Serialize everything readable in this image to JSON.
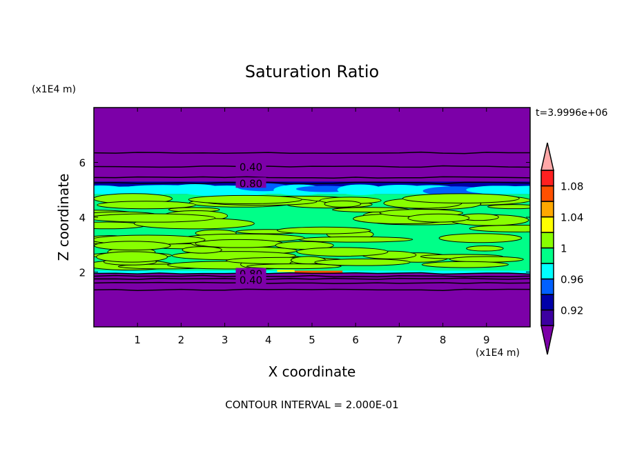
{
  "chart_data": {
    "type": "heatmap",
    "title": "Saturation Ratio",
    "xlabel": "X coordinate",
    "ylabel": "Z coordinate",
    "x_unit": "(x1E4 m)",
    "y_unit": "(x1E4 m)",
    "xlim": [
      0,
      10
    ],
    "ylim": [
      0,
      8
    ],
    "x_ticks": [
      1,
      2,
      3,
      4,
      5,
      6,
      7,
      8,
      9
    ],
    "y_ticks": [
      2,
      4,
      6
    ],
    "time_label": "t=3.9996e+06",
    "footer": "CONTOUR INTERVAL = 2.000E-01",
    "colorbar": {
      "levels": [
        0.9,
        0.92,
        0.94,
        0.96,
        0.98,
        1.0,
        1.02,
        1.04,
        1.06,
        1.08,
        1.1
      ],
      "tick_labels": [
        "0.92",
        "0.96",
        "1",
        "1.04",
        "1.08"
      ],
      "tick_values": [
        0.92,
        0.96,
        1.0,
        1.04,
        1.08
      ],
      "below_color": "#7c00a8",
      "above_color": "#ffa8a8",
      "colors": [
        "#3c00a0",
        "#0000a8",
        "#0060ff",
        "#00ffff",
        "#00ff88",
        "#88ff00",
        "#ffff00",
        "#ffa800",
        "#ff5000",
        "#ff2020"
      ],
      "extend": "both"
    },
    "layers": [
      {
        "z": [
          0,
          1.95
        ],
        "value": "below 0.90"
      },
      {
        "z": [
          1.95,
          4.85
        ],
        "value": "0.98-1.02"
      },
      {
        "z": [
          4.85,
          5.05
        ],
        "value": "0.94-0.98"
      },
      {
        "z": [
          5.05,
          5.3
        ],
        "value": "0.90-0.94"
      },
      {
        "z": [
          5.3,
          8
        ],
        "value": "below 0.90"
      }
    ],
    "contour_lines_z": [
      1.35,
      1.6,
      1.75,
      1.85,
      1.95,
      5.25,
      5.45,
      5.85,
      6.35
    ],
    "contour_labels": [
      {
        "text": "0.40",
        "x": 3.6,
        "z": 5.85
      },
      {
        "text": "0.80",
        "x": 3.6,
        "z": 5.25
      },
      {
        "text": "0.80",
        "x": 3.6,
        "z": 1.95
      },
      {
        "text": "0.40",
        "x": 3.6,
        "z": 1.72
      }
    ]
  }
}
